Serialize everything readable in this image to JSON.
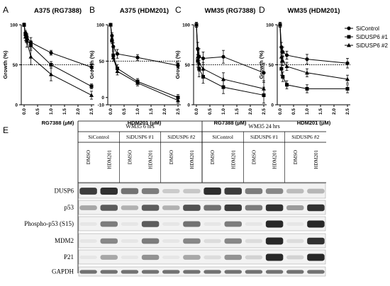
{
  "figure": {
    "panel_letters": [
      "A",
      "B",
      "C",
      "D",
      "E"
    ],
    "legend": [
      {
        "name": "SiControl",
        "marker": "circle"
      },
      {
        "name": "SiDUSP6 #1",
        "marker": "square"
      },
      {
        "name": "SiDUSP6 #2",
        "marker": "triangle"
      }
    ]
  },
  "chart_data": [
    {
      "type": "line",
      "panel": "A",
      "title": "A375 (RG7388)",
      "xlabel": "RG7388 (μM)",
      "ylabel": "Growth (%)",
      "xlim": [
        0,
        2.5
      ],
      "ylim": [
        0,
        100
      ],
      "xticks": [
        "0.0",
        "0.5",
        "1.0",
        "1.5",
        "2.0",
        "2.5"
      ],
      "yticks": [
        "0",
        "50",
        "100"
      ],
      "reference_line": 50,
      "x": [
        0,
        0.05,
        0.1,
        0.25,
        1,
        2.5
      ],
      "series": [
        {
          "name": "SiControl",
          "values": [
            100,
            90,
            85,
            78,
            65,
            47
          ],
          "err": [
            2,
            3,
            4,
            6,
            3,
            4
          ]
        },
        {
          "name": "SiDUSP6 #1",
          "values": [
            100,
            88,
            82,
            74,
            50,
            23
          ],
          "err": [
            2,
            3,
            5,
            6,
            4,
            3
          ]
        },
        {
          "name": "SiDUSP6 #2",
          "values": [
            100,
            85,
            80,
            60,
            38,
            12
          ],
          "err": [
            2,
            5,
            8,
            10,
            8,
            5
          ]
        }
      ]
    },
    {
      "type": "line",
      "panel": "B",
      "title": "A375 (HDM201)",
      "xlabel": "HDM201 (μM)",
      "ylabel": "Growth (%)",
      "xlim": [
        0,
        2.5
      ],
      "ylim": [
        -10,
        100
      ],
      "xticks": [
        "0.0",
        "0.5",
        "1.0",
        "1.5",
        "2.0",
        "2.5"
      ],
      "yticks": [
        "-10",
        "0",
        "50",
        "100"
      ],
      "reference_line": 50,
      "x": [
        0,
        0.05,
        0.1,
        0.25,
        1,
        2.5
      ],
      "series": [
        {
          "name": "SiControl",
          "values": [
            100,
            85,
            70,
            60,
            55,
            44
          ],
          "err": [
            2,
            4,
            5,
            6,
            4,
            3
          ]
        },
        {
          "name": "SiDUSP6 #1",
          "values": [
            100,
            78,
            58,
            40,
            22,
            0
          ],
          "err": [
            2,
            4,
            5,
            5,
            4,
            4
          ]
        },
        {
          "name": "SiDUSP6 #2",
          "values": [
            100,
            80,
            55,
            36,
            20,
            -4
          ],
          "err": [
            2,
            4,
            5,
            5,
            4,
            4
          ]
        }
      ]
    },
    {
      "type": "line",
      "panel": "C",
      "title": "WM35 (RG7388)",
      "xlabel": "RG7388 (μM)",
      "ylabel": "Growth (%)",
      "xlim": [
        0,
        2.5
      ],
      "ylim": [
        0,
        100
      ],
      "xticks": [
        "0.0",
        "0.5",
        "1.0",
        "1.5",
        "2.0",
        "2.5"
      ],
      "yticks": [
        "0",
        "50",
        "100"
      ],
      "reference_line": 50,
      "x": [
        0,
        0.05,
        0.1,
        0.25,
        1,
        2.5
      ],
      "series": [
        {
          "name": "SiControl",
          "values": [
            100,
            70,
            60,
            58,
            60,
            40
          ],
          "err": [
            3,
            8,
            10,
            8,
            8,
            12
          ]
        },
        {
          "name": "SiDUSP6 #1",
          "values": [
            100,
            55,
            45,
            35,
            22,
            12
          ],
          "err": [
            3,
            8,
            10,
            8,
            8,
            10
          ]
        },
        {
          "name": "SiDUSP6 #2",
          "values": [
            100,
            60,
            52,
            45,
            32,
            20
          ],
          "err": [
            3,
            8,
            10,
            8,
            8,
            10
          ]
        }
      ]
    },
    {
      "type": "line",
      "panel": "D",
      "title": "WM35 (HDM201)",
      "xlabel": "HDM201 (μM)",
      "ylabel": "Growth (%)",
      "xlim": [
        0,
        2.5
      ],
      "ylim": [
        0,
        100
      ],
      "xticks": [
        "0.0",
        "0.5",
        "1.0",
        "1.5",
        "2.0",
        "2.5"
      ],
      "yticks": [
        "0",
        "50",
        "100"
      ],
      "reference_line": 50,
      "x": [
        0,
        0.05,
        0.1,
        0.25,
        1,
        2.5
      ],
      "series": [
        {
          "name": "SiControl",
          "values": [
            100,
            72,
            66,
            62,
            57,
            52
          ],
          "err": [
            3,
            6,
            6,
            5,
            6,
            6
          ]
        },
        {
          "name": "SiDUSP6 #1",
          "values": [
            100,
            45,
            35,
            25,
            20,
            20
          ],
          "err": [
            3,
            8,
            6,
            5,
            5,
            5
          ]
        },
        {
          "name": "SiDUSP6 #2",
          "values": [
            100,
            60,
            55,
            48,
            40,
            32
          ],
          "err": [
            3,
            6,
            6,
            5,
            5,
            5
          ]
        }
      ]
    }
  ],
  "blot": {
    "cell_line_groups": [
      "WM35 6 hrs",
      "WM35 24 hrs"
    ],
    "treatment_groups": [
      "SiControl",
      "SiDUSP6 #1",
      "SiDUSP6 #2",
      "SiControl",
      "SiDUSP6 #1",
      "SiDUSP6 #2"
    ],
    "lanes": [
      "DMSO",
      "HDM201",
      "DMSO",
      "HDM201",
      "DMSO",
      "HDM201",
      "DMSO",
      "HDM201",
      "DMSO",
      "HDM201",
      "DMSO",
      "HDM201"
    ],
    "rows": [
      {
        "label": "DUSP6",
        "intensity": [
          0.85,
          0.9,
          0.6,
          0.55,
          0.18,
          0.2,
          0.92,
          0.85,
          0.55,
          0.5,
          0.25,
          0.28
        ]
      },
      {
        "label": "p53",
        "intensity": [
          0.35,
          0.7,
          0.3,
          0.7,
          0.3,
          0.75,
          0.6,
          0.85,
          0.55,
          0.9,
          0.4,
          0.9
        ]
      },
      {
        "label": "Phospho-p53 (S15)",
        "intensity": [
          0.05,
          0.55,
          0.05,
          0.7,
          0.05,
          0.6,
          0.05,
          0.55,
          0.05,
          0.95,
          0.05,
          0.95
        ]
      },
      {
        "label": "MDM2",
        "intensity": [
          0.05,
          0.5,
          0.05,
          0.55,
          0.05,
          0.5,
          0.1,
          0.5,
          0.1,
          0.95,
          0.1,
          0.9
        ]
      },
      {
        "label": "P21",
        "intensity": [
          0.05,
          0.35,
          0.05,
          0.45,
          0.05,
          0.35,
          0.1,
          0.45,
          0.15,
          0.95,
          0.15,
          0.95
        ]
      },
      {
        "label": "GAPDH",
        "intensity": [
          0.6,
          0.6,
          0.6,
          0.6,
          0.6,
          0.6,
          0.6,
          0.6,
          0.6,
          0.6,
          0.6,
          0.6
        ]
      }
    ],
    "colors": {
      "band": "#1c1c1c",
      "membrane": "#f2f2f2"
    }
  }
}
